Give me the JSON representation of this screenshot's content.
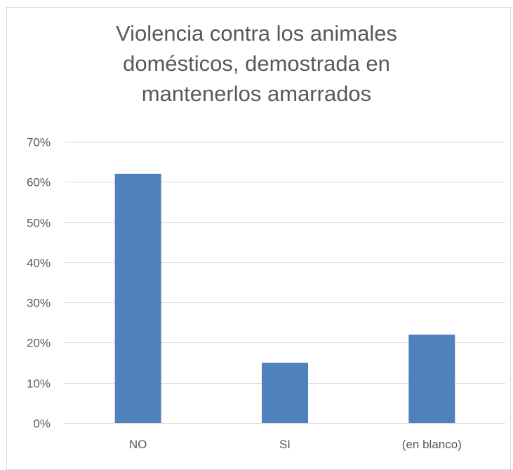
{
  "chart_data": {
    "type": "bar",
    "title_lines": [
      "Violencia contra los animales",
      "domésticos, demostrada en",
      "mantenerlos amarrados"
    ],
    "categories": [
      "NO",
      "SI",
      "(en blanco)"
    ],
    "values": [
      62,
      15,
      22
    ],
    "ylim": [
      0,
      70
    ],
    "yticks": [
      0,
      10,
      20,
      30,
      40,
      50,
      60,
      70
    ],
    "ytick_labels": [
      "0%",
      "10%",
      "20%",
      "30%",
      "40%",
      "50%",
      "60%",
      "70%"
    ],
    "grid": true,
    "legend": "none",
    "bar_color": "#4f81bd",
    "grid_color": "#d9d9d9",
    "text_color": "#595959"
  }
}
